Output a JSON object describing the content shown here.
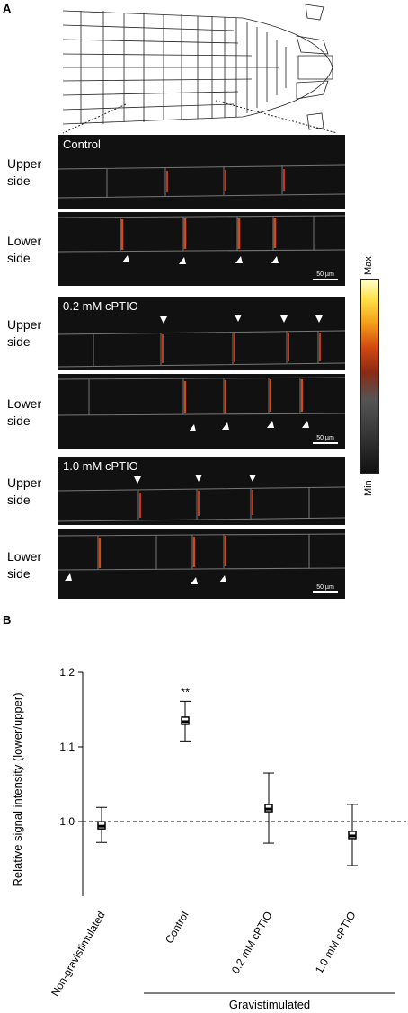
{
  "figure": {
    "panel_a_label": "A",
    "panel_b_label": "B",
    "upper_side": "Upper side",
    "lower_side": "Lower side",
    "scale_bar": "50 µm",
    "colorbar": {
      "max": "Max",
      "min": "Min"
    },
    "conditions": [
      "Control",
      "0.2 mM cPTIO",
      "1.0 mM cPTIO"
    ]
  },
  "chart_data": {
    "type": "scatter",
    "ylabel": "Relative signal intensity (lower/upper)",
    "categories": [
      "Non-gravistimulated",
      "Control",
      "0.2 mM cPTIO",
      "1.0 mM cPTIO"
    ],
    "values": [
      0.995,
      1.135,
      1.018,
      0.982
    ],
    "error_low": [
      0.972,
      1.108,
      0.971,
      0.941
    ],
    "error_high": [
      1.019,
      1.161,
      1.065,
      1.023
    ],
    "ylim": [
      0.9,
      1.2
    ],
    "yticks": [
      "1.0",
      "1.1",
      "1.2"
    ],
    "reference_line": 1.0,
    "significance": {
      "category": "Control",
      "label": "**"
    },
    "group_label": "Gravistimulated"
  }
}
